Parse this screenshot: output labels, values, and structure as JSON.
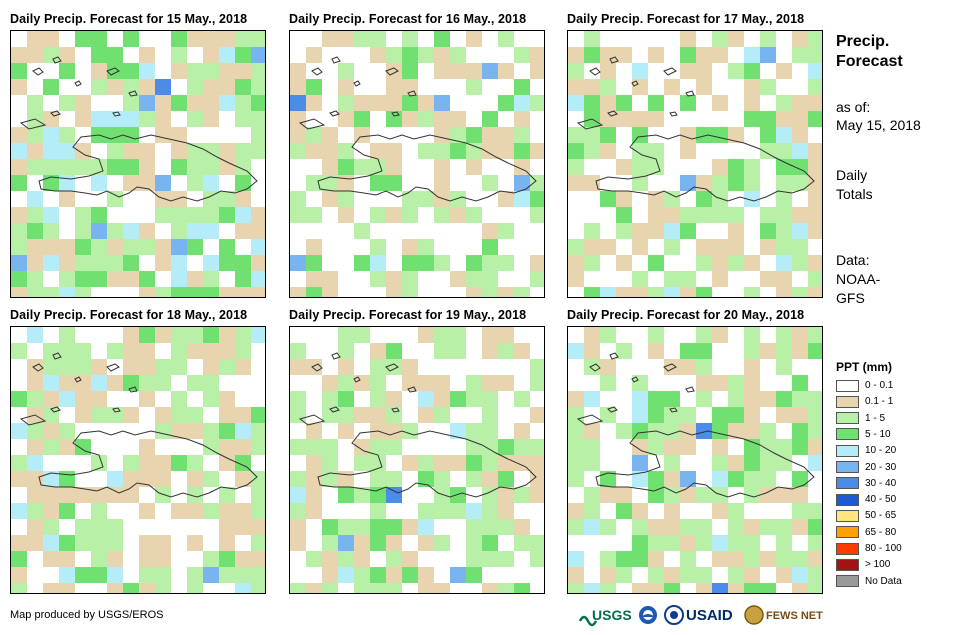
{
  "panels": [
    {
      "title": "Daily Precip. Forecast for 15 May., 2018",
      "seed": 11,
      "weights": [
        0.25,
        0.24,
        0.22,
        0.18,
        0.11
      ]
    },
    {
      "title": "Daily Precip. Forecast for 16 May., 2018",
      "seed": 23,
      "weights": [
        0.42,
        0.25,
        0.2,
        0.08,
        0.05
      ]
    },
    {
      "title": "Daily Precip. Forecast for 17 May., 2018",
      "seed": 37,
      "weights": [
        0.35,
        0.28,
        0.22,
        0.1,
        0.05
      ]
    },
    {
      "title": "Daily Precip. Forecast for 18 May., 2018",
      "seed": 41,
      "weights": [
        0.3,
        0.3,
        0.28,
        0.08,
        0.04
      ]
    },
    {
      "title": "Daily Precip. Forecast for 19 May., 2018",
      "seed": 53,
      "weights": [
        0.33,
        0.25,
        0.3,
        0.08,
        0.04
      ]
    },
    {
      "title": "Daily Precip. Forecast for 20 May., 2018",
      "seed": 67,
      "weights": [
        0.3,
        0.25,
        0.3,
        0.1,
        0.05
      ]
    }
  ],
  "sidebar": {
    "title": "Precip. Forecast",
    "asof_label": "as of:",
    "asof_date": "May 15, 2018",
    "totals": "Daily Totals",
    "source": "Data: NOAA-GFS"
  },
  "legend": {
    "title": "PPT (mm)",
    "items": [
      {
        "label": "0 - 0.1",
        "color": "#ffffff"
      },
      {
        "label": "0.1 - 1",
        "color": "#e8d5b0"
      },
      {
        "label": "1 - 5",
        "color": "#b8f0a8"
      },
      {
        "label": "5 - 10",
        "color": "#70e070"
      },
      {
        "label": "10 - 20",
        "color": "#b4ecf8"
      },
      {
        "label": "20 - 30",
        "color": "#78b4f0"
      },
      {
        "label": "30 - 40",
        "color": "#4a8ce8"
      },
      {
        "label": "40 - 50",
        "color": "#1e5ad2"
      },
      {
        "label": "50 - 65",
        "color": "#ffe680"
      },
      {
        "label": "65 - 80",
        "color": "#ffa000"
      },
      {
        "label": "80 - 100",
        "color": "#ff3c00"
      },
      {
        "label": "> 100",
        "color": "#a01414"
      },
      {
        "label": "No Data",
        "color": "#999999"
      }
    ]
  },
  "credit": "Map produced by USGS/EROS",
  "logos": {
    "usgs": "USGS",
    "usaid": "USAID",
    "fewsnet": "FEWS NET"
  }
}
